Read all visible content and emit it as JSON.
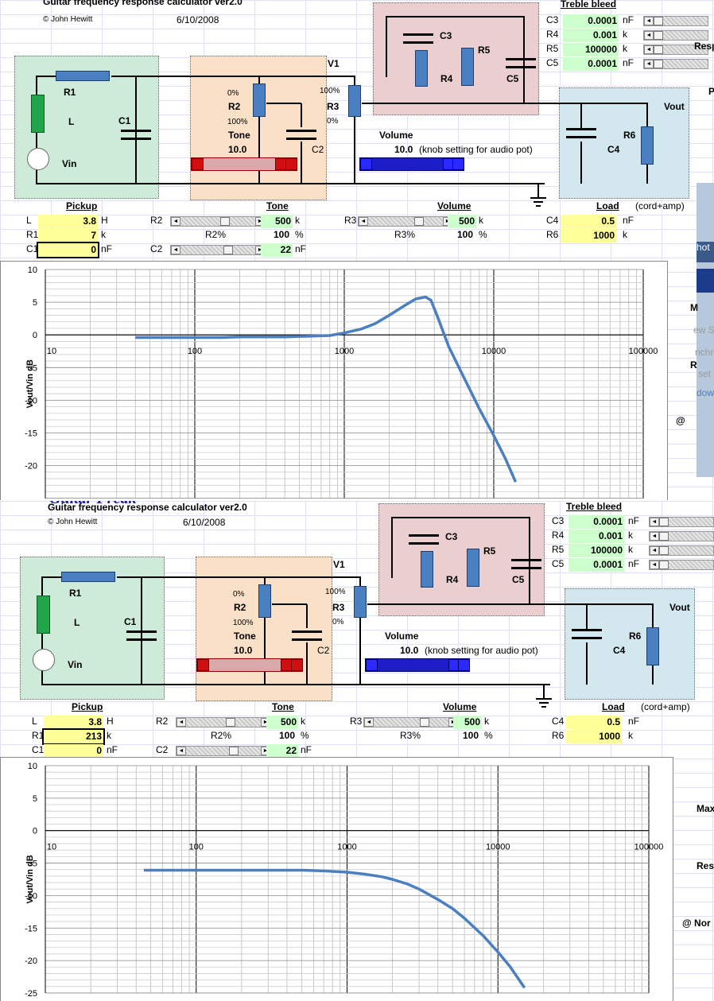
{
  "app": {
    "header": "Guitar frequency response calculator   ver2.0",
    "author": "© John Hewitt",
    "date": "6/10/2008",
    "watermark": "Guitar Freak"
  },
  "circuit": {
    "labels": {
      "R1": "R1",
      "L": "L",
      "Vin": "Vin",
      "C1": "C1",
      "R2": "R2",
      "Tone": "Tone",
      "C2": "C2",
      "R3": "R3",
      "V1": "V1",
      "Volume": "Volume",
      "C3": "C3",
      "R4": "R4",
      "R5": "R5",
      "C5": "C5",
      "R6": "R6",
      "C4": "C4",
      "Vout": "Vout",
      "pct0": "0%",
      "pct100": "100%"
    },
    "tone_knob": "10.0",
    "volume_knob": "10.0",
    "volume_note": "(knob setting for audio pot)"
  },
  "treble": {
    "title": "Treble bleed",
    "rows": [
      {
        "name": "C3",
        "value": "0.0001",
        "unit": "nF"
      },
      {
        "name": "R4",
        "value": "0.001",
        "unit": "k"
      },
      {
        "name": "R5",
        "value": "100000",
        "unit": "k"
      },
      {
        "name": "C5",
        "value": "0.0001",
        "unit": "nF"
      }
    ]
  },
  "headers": {
    "pickup": "Pickup",
    "tone": "Tone",
    "volume": "Volume",
    "load": "Load",
    "cord": "(cord+amp)"
  },
  "rows": {
    "L": {
      "label": "L",
      "value": "3.8",
      "unit": "H"
    },
    "R1": {
      "label": "R1",
      "unit": "k"
    },
    "C1": {
      "label": "C1",
      "value": "0",
      "unit": "nF"
    },
    "R2": {
      "label": "R2",
      "value": "500",
      "unit": "k"
    },
    "R2p": {
      "label": "R2%",
      "value": "100",
      "unit": "%"
    },
    "C2": {
      "label": "C2",
      "value": "22",
      "unit": "nF"
    },
    "R3": {
      "label": "R3",
      "value": "500",
      "unit": "k"
    },
    "R3p": {
      "label": "R3%",
      "value": "100",
      "unit": "%"
    },
    "C4": {
      "label": "C4",
      "value": "0.5",
      "unit": "nF"
    },
    "R6": {
      "label": "R6",
      "value": "1000",
      "unit": "k"
    }
  },
  "screens": [
    {
      "R1_value": "7"
    },
    {
      "R1_value": "213"
    }
  ],
  "side": {
    "r1": "Resp",
    "r2": "P",
    "r3": "hot",
    "r4": "M",
    "r5": "ew S",
    "r6": "nchr",
    "r7": "R",
    "r8": "set",
    "r9": "dow",
    "r10": "@",
    "s1": "Max",
    "s2": "Res",
    "s3": "@ Nor"
  },
  "chart_data": [
    {
      "type": "line",
      "title": "",
      "xlabel": "",
      "ylabel": "Vout/Vin dB",
      "x_scale": "log",
      "xlim": [
        10,
        100000
      ],
      "ylim": [
        -25,
        10
      ],
      "x_ticks": [
        "10",
        "100",
        "1000",
        "10000",
        "100000"
      ],
      "y_ticks": [
        "10",
        "5",
        "0",
        "-5",
        "-10",
        "-15",
        "-20"
      ],
      "series": [
        {
          "x": [
            40,
            60,
            100,
            150,
            200,
            300,
            400,
            600,
            800,
            1000,
            1300,
            1600,
            2000,
            2500,
            3000,
            3500,
            3800,
            4200,
            5000,
            6000,
            7000,
            8000,
            10000,
            12000,
            14000
          ],
          "y": [
            -0.4,
            -0.4,
            -0.4,
            -0.4,
            -0.3,
            -0.3,
            -0.3,
            -0.2,
            -0.1,
            0.3,
            0.9,
            1.7,
            3.0,
            4.4,
            5.5,
            5.8,
            5.3,
            2.8,
            -1.8,
            -5.5,
            -8.6,
            -11.3,
            -15.4,
            -19.0,
            -22.5
          ]
        }
      ]
    },
    {
      "type": "line",
      "title": "",
      "xlabel": "",
      "ylabel": "Vout/Vin dB",
      "x_scale": "log",
      "xlim": [
        10,
        100000
      ],
      "ylim": [
        -25,
        10
      ],
      "x_ticks": [
        "10",
        "100",
        "1000",
        "10000",
        "100000"
      ],
      "y_ticks": [
        "10",
        "5",
        "0",
        "-5",
        "-10",
        "-15",
        "-20",
        "-25"
      ],
      "series": [
        {
          "x": [
            45,
            60,
            100,
            200,
            300,
            500,
            700,
            1000,
            1300,
            1700,
            2000,
            2500,
            3000,
            4000,
            5000,
            6000,
            8000,
            10000,
            12000,
            15000
          ],
          "y": [
            -6.1,
            -6.1,
            -6.1,
            -6.1,
            -6.1,
            -6.1,
            -6.2,
            -6.4,
            -6.7,
            -7.1,
            -7.5,
            -8.2,
            -9.0,
            -10.6,
            -12.0,
            -13.5,
            -16.2,
            -18.7,
            -20.9,
            -24.2
          ]
        }
      ]
    }
  ]
}
